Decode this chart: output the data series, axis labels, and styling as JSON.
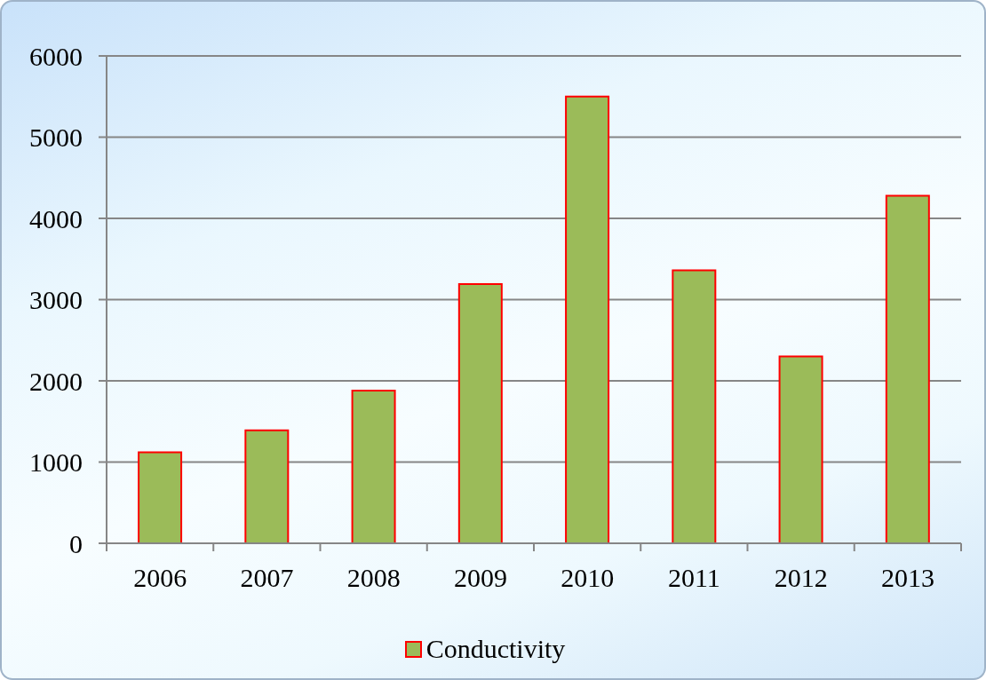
{
  "chart_data": {
    "type": "bar",
    "categories": [
      "2006",
      "2007",
      "2008",
      "2009",
      "2010",
      "2011",
      "2012",
      "2013"
    ],
    "series": [
      {
        "name": "Conductivity",
        "color": "#9bbb59",
        "values": [
          1120,
          1390,
          1880,
          3190,
          5500,
          3360,
          2300,
          4280
        ]
      }
    ],
    "ylim": [
      0,
      6000
    ],
    "yticks": [
      0,
      1000,
      2000,
      3000,
      4000,
      5000,
      6000
    ],
    "grid": "y",
    "legend": "bottom"
  }
}
